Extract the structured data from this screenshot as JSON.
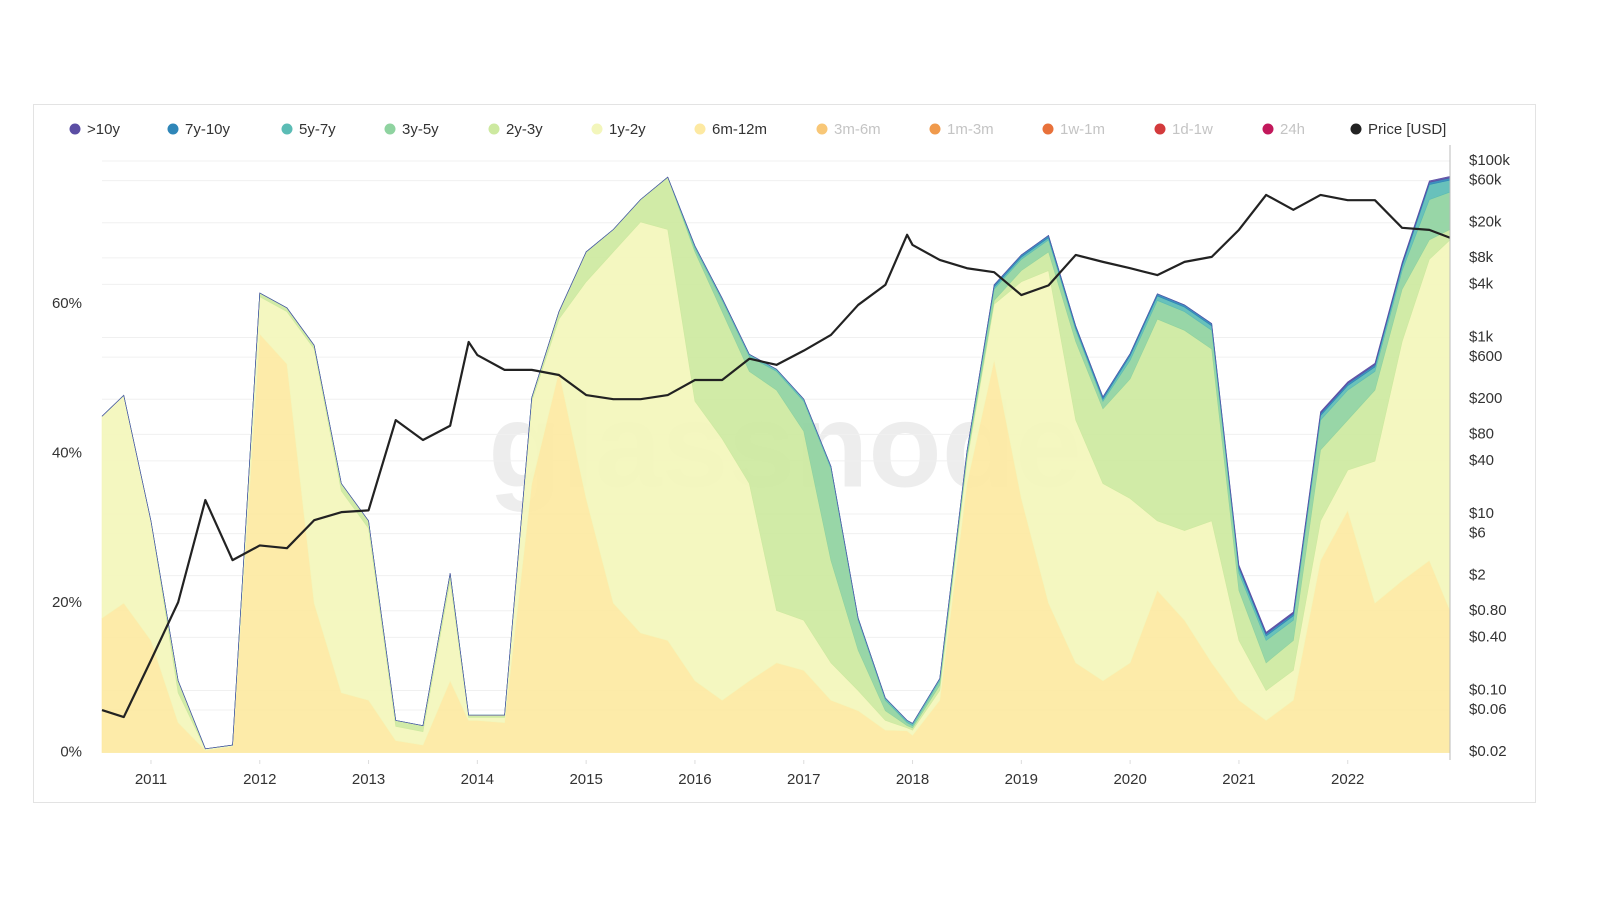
{
  "chart_data": {
    "type": "area",
    "stacked": true,
    "watermark": "glassnode",
    "x": [
      2010.55,
      2010.75,
      2011,
      2011.25,
      2011.5,
      2011.75,
      2012,
      2012.25,
      2012.5,
      2012.75,
      2013,
      2013.25,
      2013.5,
      2013.75,
      2013.92,
      2014,
      2014.25,
      2014.5,
      2014.75,
      2015,
      2015.25,
      2015.5,
      2015.75,
      2016,
      2016.25,
      2016.5,
      2016.75,
      2017,
      2017.25,
      2017.5,
      2017.75,
      2017.95,
      2018,
      2018.25,
      2018.5,
      2018.75,
      2019,
      2019.25,
      2019.5,
      2019.75,
      2020,
      2020.25,
      2020.5,
      2020.75,
      2021,
      2021.25,
      2021.5,
      2021.75,
      2022,
      2022.25,
      2022.5,
      2022.75,
      2022.94
    ],
    "xlim": [
      2010.55,
      2022.94
    ],
    "xticks": [
      2011,
      2012,
      2013,
      2014,
      2015,
      2016,
      2017,
      2018,
      2019,
      2020,
      2021,
      2022
    ],
    "ylim": [
      -1,
      81.3
    ],
    "yticks": [
      {
        "value": 0,
        "label": "0%"
      },
      {
        "value": 20,
        "label": "20%"
      },
      {
        "value": 40,
        "label": "40%"
      },
      {
        "value": 60,
        "label": "60%"
      }
    ],
    "y2scale": "log",
    "y2lim": [
      0.0163,
      152000
    ],
    "y2ticks": [
      {
        "value": 0.02,
        "label": "$0.02"
      },
      {
        "value": 0.06,
        "label": "$0.06"
      },
      {
        "value": 0.1,
        "label": "$0.10"
      },
      {
        "value": 0.4,
        "label": "$0.40"
      },
      {
        "value": 0.8,
        "label": "$0.80"
      },
      {
        "value": 2,
        "label": "$2"
      },
      {
        "value": 6,
        "label": "$6"
      },
      {
        "value": 10,
        "label": "$10"
      },
      {
        "value": 40,
        "label": "$40"
      },
      {
        "value": 80,
        "label": "$80"
      },
      {
        "value": 200,
        "label": "$200"
      },
      {
        "value": 600,
        "label": "$600"
      },
      {
        "value": 1000,
        "label": "$1k"
      },
      {
        "value": 4000,
        "label": "$4k"
      },
      {
        "value": 8000,
        "label": "$8k"
      },
      {
        "value": 20000,
        "label": "$20k"
      },
      {
        "value": 60000,
        "label": "$60k"
      },
      {
        "value": 100000,
        "label": "$100k"
      }
    ],
    "grid": true,
    "series": [
      {
        "name": ">10y",
        "color": "#5b4ea4",
        "values": [
          0,
          0,
          0,
          0,
          0,
          0,
          0,
          0,
          0,
          0,
          0,
          0,
          0,
          0,
          0,
          0,
          0,
          0,
          0,
          0,
          0,
          0,
          0,
          0,
          0,
          0,
          0,
          0,
          0,
          0,
          0,
          0,
          0,
          0,
          0,
          0,
          0,
          0,
          0,
          0,
          0,
          0,
          0,
          0,
          0.2,
          0.2,
          0.2,
          0.2,
          0.2,
          0.2,
          0.2,
          0.2,
          0.2
        ]
      },
      {
        "name": "7y-10y",
        "color": "#2f86b8",
        "values": [
          0,
          0,
          0,
          0,
          0,
          0,
          0,
          0,
          0,
          0,
          0,
          0,
          0,
          0,
          0,
          0,
          0,
          0,
          0,
          0,
          0,
          0,
          0,
          0,
          0,
          0,
          0,
          0,
          0,
          0,
          0,
          0,
          0,
          0,
          0,
          0.3,
          0.3,
          0.3,
          0.3,
          0.3,
          0.3,
          0.3,
          0.3,
          0.3,
          0.3,
          0.3,
          0.3,
          0.3,
          0.3,
          0.3,
          0.3,
          0.3,
          0.3
        ]
      },
      {
        "name": "5y-7y",
        "color": "#5bbcb5",
        "values": [
          0,
          0,
          0,
          0,
          0,
          0,
          0,
          0,
          0,
          0,
          0,
          0,
          0,
          0,
          0,
          0,
          0,
          0,
          0,
          0,
          0,
          0,
          0,
          0.3,
          0.3,
          0.3,
          0.3,
          0.3,
          0.3,
          0.3,
          0.3,
          0.3,
          0.3,
          0.3,
          0.3,
          0.3,
          0.3,
          0.3,
          0.3,
          0.3,
          0.6,
          0.6,
          0.6,
          0.6,
          0.6,
          0.6,
          0.6,
          0.6,
          0.6,
          0.6,
          0.6,
          2,
          1.6
        ]
      },
      {
        "name": "3y-5y",
        "color": "#8fd3a0",
        "values": [
          0,
          0,
          0,
          0,
          0,
          0,
          0,
          0,
          0,
          0,
          0,
          0,
          0,
          0,
          0,
          0,
          0,
          0,
          0,
          0,
          0,
          0,
          0,
          0.5,
          1.5,
          2,
          2.5,
          4,
          12.3,
          4,
          1.4,
          0.4,
          0.3,
          0.6,
          0.5,
          1.5,
          1.5,
          1.6,
          1.5,
          1,
          2.5,
          2.5,
          2.5,
          2.5,
          2.3,
          3,
          2.7,
          4,
          4,
          2.5,
          2.5,
          5.4,
          5
        ]
      },
      {
        "name": "2y-3y",
        "color": "#cde9a0",
        "values": [
          0,
          0,
          0,
          1.6,
          0,
          0,
          0.5,
          0.5,
          0.5,
          1,
          1,
          0.8,
          0.8,
          1,
          0.3,
          0.3,
          0.3,
          0.5,
          1,
          4,
          3,
          3,
          7,
          20,
          17,
          15,
          29.5,
          25.3,
          13.7,
          5.4,
          1.3,
          0.3,
          0.3,
          0.7,
          0.5,
          0.5,
          1.5,
          2.5,
          10.5,
          10,
          16,
          27,
          26.8,
          23,
          6.7,
          3.7,
          4,
          9.5,
          6.7,
          9.5,
          7,
          2.6,
          1.4
        ]
      },
      {
        "name": "1y-2y",
        "color": "#f3f6bb",
        "values": [
          27,
          27.8,
          16,
          4,
          0.2,
          0.2,
          5,
          7,
          34,
          27,
          23,
          1.9,
          1.8,
          13.4,
          0.4,
          0.4,
          0.7,
          11,
          7,
          29,
          47,
          55,
          55,
          37.4,
          35,
          26.4,
          7,
          6.7,
          5,
          2.7,
          1.3,
          0.4,
          0.7,
          1.3,
          3,
          7.5,
          29,
          44.5,
          32.5,
          26.4,
          22,
          9.3,
          12,
          19,
          8,
          4,
          4,
          5.3,
          5.4,
          19,
          32,
          40.3,
          49.6
        ]
      },
      {
        "name": "6m-12m",
        "color": "#fde9a2",
        "values": [
          18,
          20,
          15,
          4,
          0.3,
          0.8,
          56,
          52,
          20,
          8,
          7,
          1.6,
          1,
          9.6,
          4.3,
          4.3,
          4,
          36,
          51,
          34,
          20,
          16,
          15,
          9.6,
          7,
          9.6,
          12,
          11,
          7,
          5.6,
          3,
          2.9,
          2.3,
          7,
          36,
          52.5,
          34,
          20,
          12,
          9.6,
          12,
          21.7,
          17.7,
          12,
          7,
          4.3,
          7,
          25.7,
          32.4,
          20,
          23,
          25.7,
          19
        ]
      },
      {
        "name": "3m-6m",
        "color": "#f8c777",
        "visible": false
      },
      {
        "name": "1m-3m",
        "color": "#f09a4c",
        "visible": false
      },
      {
        "name": "1w-1m",
        "color": "#e8713a",
        "visible": false
      },
      {
        "name": "1d-1w",
        "color": "#d33a3c",
        "visible": false
      },
      {
        "name": "24h",
        "color": "#c2185b",
        "visible": false
      },
      {
        "name": "Price [USD]",
        "color": "#222222",
        "axis": "y2",
        "type": "line",
        "values": [
          0.06,
          0.05,
          0.22,
          1,
          14.4,
          3,
          4.4,
          4.1,
          8.5,
          10.5,
          11,
          116,
          69,
          100,
          890,
          633,
          430,
          430,
          376,
          223,
          200,
          200,
          223,
          330,
          330,
          575,
          490,
          710,
          1070,
          2340,
          3950,
          14600,
          11200,
          7570,
          6100,
          5500,
          3030,
          3900,
          8630,
          7200,
          6100,
          5100,
          7200,
          8200,
          16600,
          41300,
          28000,
          41300,
          36000,
          36000,
          17500,
          16600,
          13500
        ]
      }
    ]
  }
}
